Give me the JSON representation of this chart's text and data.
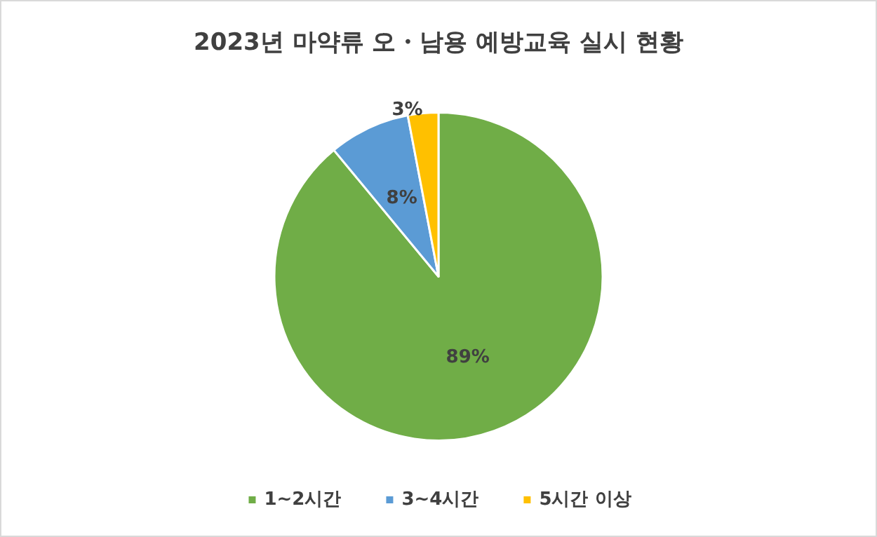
{
  "chart_data": {
    "type": "pie",
    "title": "2023년 마약류 오・남용 예방교육 실시 현황",
    "categories": [
      "1~2시간",
      "3~4시간",
      "5시간 이상"
    ],
    "values": [
      89,
      8,
      3
    ],
    "colors": [
      "#70ad47",
      "#5b9bd5",
      "#ffc000"
    ],
    "value_labels": [
      "89%",
      "8%",
      "3%"
    ],
    "legend": "bottom"
  }
}
